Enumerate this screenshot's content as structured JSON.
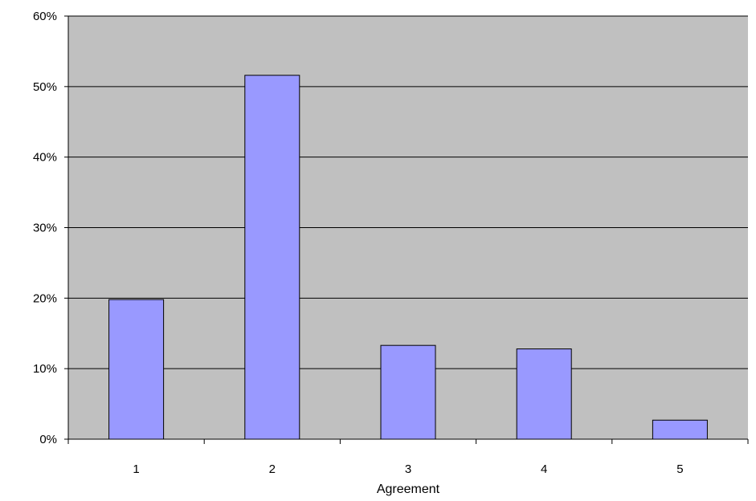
{
  "chart_data": {
    "type": "bar",
    "title": "",
    "xlabel": "Agreement",
    "ylabel": "",
    "categories": [
      "1",
      "2",
      "3",
      "4",
      "5"
    ],
    "values": [
      19.8,
      51.6,
      13.3,
      12.8,
      2.7
    ],
    "y_unit": "%",
    "ylim": [
      0,
      60
    ],
    "y_ticks": [
      0,
      10,
      20,
      30,
      40,
      50,
      60
    ],
    "y_tick_labels": [
      "0%",
      "10%",
      "20%",
      "30%",
      "40%",
      "50%",
      "60%"
    ],
    "grid": true,
    "legend": "none"
  },
  "colors": {
    "plot_background": "#c0c0c0",
    "bar_fill": "#9999ff",
    "bar_stroke": "#000000",
    "gridline": "#000000",
    "axis": "#000000",
    "page_background": "#ffffff"
  }
}
